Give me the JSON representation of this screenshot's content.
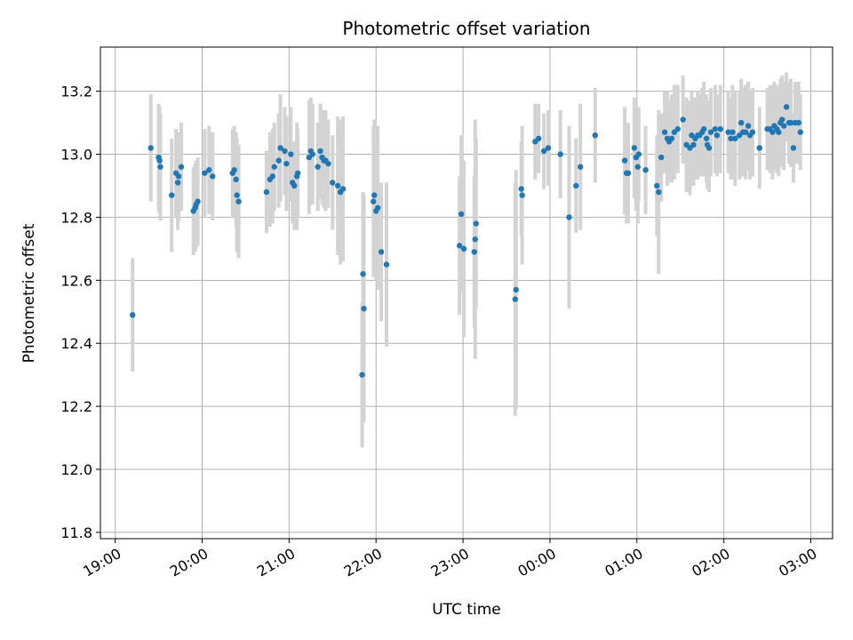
{
  "chart_data": {
    "type": "scatter",
    "title": "Photometric offset variation",
    "xlabel": "UTC time",
    "ylabel": "Photometric offset",
    "x_unit": "hours since 19:00 UTC",
    "xlim": [
      -0.17,
      8.25
    ],
    "ylim": [
      11.78,
      13.34
    ],
    "x_tick_labels": [
      "19:00",
      "20:00",
      "21:00",
      "22:00",
      "23:00",
      "00:00",
      "01:00",
      "02:00",
      "03:00"
    ],
    "y_ticks": [
      11.8,
      12.0,
      12.2,
      12.4,
      12.6,
      12.8,
      13.0,
      13.2
    ],
    "y_tick_labels": [
      "11.8",
      "12.0",
      "12.2",
      "12.4",
      "12.6",
      "12.8",
      "13.0",
      "13.2"
    ],
    "grid": true,
    "colors": {
      "points": "#1f77b4",
      "errorbars": "#d3d3d3",
      "grid": "#b0b0b0"
    },
    "series": [
      {
        "x": [
          0.2,
          0.41,
          0.5,
          0.51,
          0.52,
          0.65,
          0.7,
          0.72,
          0.73,
          0.76,
          0.9,
          0.92,
          0.93,
          0.95,
          1.03,
          1.08,
          1.12,
          1.35,
          1.37,
          1.39,
          1.4,
          1.42,
          1.74,
          1.78,
          1.81,
          1.83,
          1.88,
          1.9,
          1.95,
          1.97,
          2.02,
          2.04,
          2.06,
          2.09,
          2.1,
          2.23,
          2.25,
          2.27,
          2.33,
          2.36,
          2.38,
          2.4,
          2.42,
          2.45,
          2.5,
          2.56,
          2.59,
          2.62,
          2.84,
          2.85,
          2.86,
          2.97,
          2.98,
          3.0,
          3.02,
          3.06,
          3.12,
          3.96,
          3.98,
          4.01,
          4.13,
          4.14,
          4.15,
          4.6,
          4.61,
          4.67,
          4.68,
          4.83,
          4.87,
          4.93,
          4.98,
          5.12,
          5.22,
          5.3,
          5.35,
          5.52,
          5.86,
          5.88,
          5.9,
          5.97,
          5.99,
          6.01,
          6.02,
          6.1,
          6.23,
          6.25,
          6.28,
          6.32,
          6.35,
          6.37,
          6.4,
          6.43,
          6.47,
          6.53,
          6.57,
          6.61,
          6.63,
          6.65,
          6.67,
          6.7,
          6.72,
          6.75,
          6.77,
          6.8,
          6.81,
          6.83,
          6.85,
          6.9,
          6.92,
          6.96,
          7.05,
          7.08,
          7.1,
          7.13,
          7.18,
          7.2,
          7.22,
          7.25,
          7.28,
          7.3,
          7.33,
          7.41,
          7.5,
          7.53,
          7.56,
          7.58,
          7.61,
          7.63,
          7.65,
          7.67,
          7.69,
          7.72,
          7.75,
          7.77,
          7.8,
          7.82,
          7.86,
          7.88
        ],
        "y": [
          12.49,
          13.02,
          12.99,
          12.98,
          12.96,
          12.87,
          12.94,
          12.91,
          12.93,
          12.96,
          12.82,
          12.83,
          12.84,
          12.85,
          12.94,
          12.95,
          12.93,
          12.94,
          12.95,
          12.92,
          12.87,
          12.85,
          12.88,
          12.92,
          12.93,
          12.96,
          12.98,
          13.02,
          13.01,
          12.97,
          13.0,
          12.91,
          12.9,
          12.93,
          12.94,
          12.99,
          13.01,
          13.0,
          12.96,
          13.01,
          12.99,
          12.98,
          12.98,
          12.97,
          12.91,
          12.9,
          12.88,
          12.89,
          12.3,
          12.62,
          12.51,
          12.85,
          12.87,
          12.82,
          12.83,
          12.69,
          12.65,
          12.71,
          12.81,
          12.7,
          12.69,
          12.73,
          12.78,
          12.54,
          12.57,
          12.89,
          12.87,
          13.04,
          13.05,
          13.01,
          13.02,
          13.0,
          12.8,
          12.9,
          12.96,
          13.06,
          12.98,
          12.94,
          12.94,
          13.02,
          12.99,
          12.96,
          13.0,
          12.95,
          12.9,
          12.88,
          12.99,
          13.07,
          13.05,
          13.04,
          13.05,
          13.07,
          13.08,
          13.11,
          13.03,
          13.02,
          13.06,
          13.03,
          13.05,
          13.06,
          13.06,
          13.07,
          13.08,
          13.05,
          13.03,
          13.02,
          13.07,
          13.08,
          13.06,
          13.08,
          13.07,
          13.05,
          13.07,
          13.05,
          13.06,
          13.1,
          13.07,
          13.07,
          13.09,
          13.06,
          13.07,
          13.02,
          13.08,
          13.08,
          13.07,
          13.09,
          13.08,
          13.07,
          13.1,
          13.11,
          13.09,
          13.15,
          13.1,
          13.1,
          13.02,
          13.1,
          13.1,
          13.07
        ],
        "yerr": [
          0.18,
          0.17,
          0.17,
          0.17,
          0.17,
          0.18,
          0.14,
          0.15,
          0.14,
          0.14,
          0.14,
          0.14,
          0.14,
          0.14,
          0.14,
          0.14,
          0.14,
          0.14,
          0.14,
          0.15,
          0.18,
          0.18,
          0.13,
          0.15,
          0.15,
          0.14,
          0.15,
          0.17,
          0.14,
          0.15,
          0.15,
          0.13,
          0.14,
          0.17,
          0.14,
          0.18,
          0.17,
          0.16,
          0.14,
          0.15,
          0.15,
          0.15,
          0.16,
          0.14,
          0.15,
          0.22,
          0.23,
          0.23,
          0.23,
          0.26,
          0.36,
          0.24,
          0.24,
          0.22,
          0.26,
          0.22,
          0.26,
          0.22,
          0.25,
          0.28,
          0.24,
          0.38,
          0.27,
          0.37,
          0.38,
          0.15,
          0.22,
          0.12,
          0.11,
          0.12,
          0.12,
          0.14,
          0.29,
          0.15,
          0.2,
          0.15,
          0.17,
          0.16,
          0.16,
          0.16,
          0.17,
          0.18,
          0.15,
          0.14,
          0.16,
          0.26,
          0.14,
          0.13,
          0.15,
          0.13,
          0.14,
          0.15,
          0.14,
          0.14,
          0.15,
          0.15,
          0.14,
          0.13,
          0.13,
          0.14,
          0.13,
          0.14,
          0.15,
          0.14,
          0.14,
          0.14,
          0.14,
          0.14,
          0.13,
          0.14,
          0.13,
          0.13,
          0.15,
          0.15,
          0.14,
          0.14,
          0.14,
          0.15,
          0.14,
          0.14,
          0.14,
          0.13,
          0.13,
          0.14,
          0.15,
          0.14,
          0.14,
          0.14,
          0.14,
          0.14,
          0.14,
          0.11,
          0.13,
          0.14,
          0.11,
          0.13,
          0.13,
          0.12
        ]
      }
    ]
  }
}
